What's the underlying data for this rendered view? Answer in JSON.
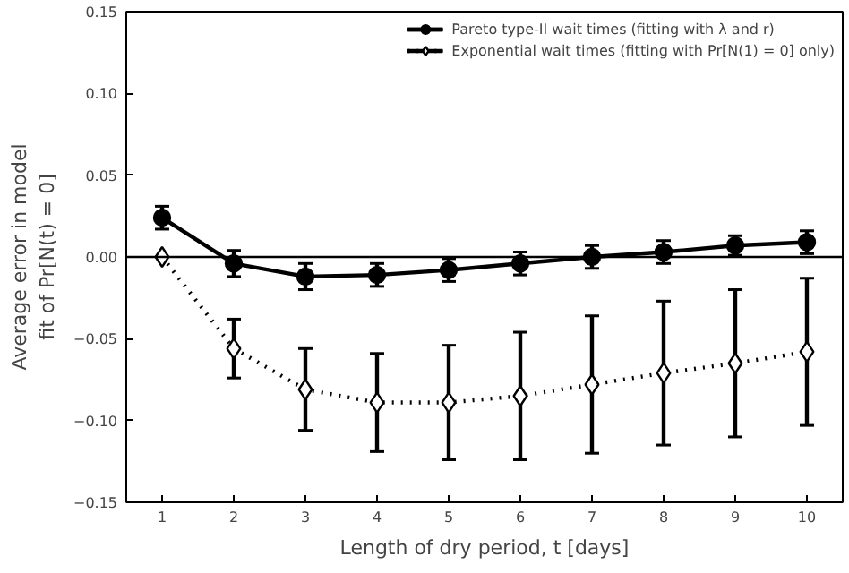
{
  "chart_data": {
    "type": "line",
    "xlabel": "Length of dry period, t [days]",
    "ylabel": "Average error in model\nfit of Pr[N(t) = 0]",
    "x": [
      1,
      2,
      3,
      4,
      5,
      6,
      7,
      8,
      9,
      10
    ],
    "series": [
      {
        "name": "Pareto type-II wait times (fitting with λ and r)",
        "color": "#000000",
        "marker": "circle",
        "line_style": "solid",
        "values": [
          0.024,
          -0.004,
          -0.012,
          -0.011,
          -0.008,
          -0.004,
          0.0,
          0.003,
          0.007,
          0.009
        ],
        "errors": [
          0.007,
          0.008,
          0.008,
          0.007,
          0.007,
          0.007,
          0.007,
          0.007,
          0.006,
          0.007
        ]
      },
      {
        "name": "Exponential wait times (fitting with Pr[N(1) = 0] only)",
        "color": "#000000",
        "marker": "diamond",
        "line_style": "dotted",
        "values": [
          0.0,
          -0.056,
          -0.081,
          -0.089,
          -0.089,
          -0.085,
          -0.078,
          -0.071,
          -0.065,
          -0.058
        ],
        "errors": [
          null,
          0.018,
          0.025,
          0.03,
          0.035,
          0.039,
          0.042,
          0.044,
          0.045,
          0.045
        ]
      }
    ],
    "xlim": [
      0.5,
      10.5
    ],
    "ylim": [
      -0.15,
      0.15
    ],
    "xticks": [
      1,
      2,
      3,
      4,
      5,
      6,
      7,
      8,
      9,
      10
    ],
    "yticks": [
      {
        "value": -0.15,
        "label": "−0.15"
      },
      {
        "value": -0.1,
        "label": "−0.10"
      },
      {
        "value": -0.05,
        "label": "−0.05"
      },
      {
        "value": 0,
        "label": "0.00"
      },
      {
        "value": 0.05,
        "label": "0.05"
      },
      {
        "value": 0.1,
        "label": "0.10"
      },
      {
        "value": 0.15,
        "label": "0.15"
      }
    ],
    "ref_lines": [
      {
        "axis": "y",
        "value": 0,
        "color": "#000000",
        "line_style": "solid"
      }
    ],
    "grid": false,
    "legend": "top right"
  }
}
